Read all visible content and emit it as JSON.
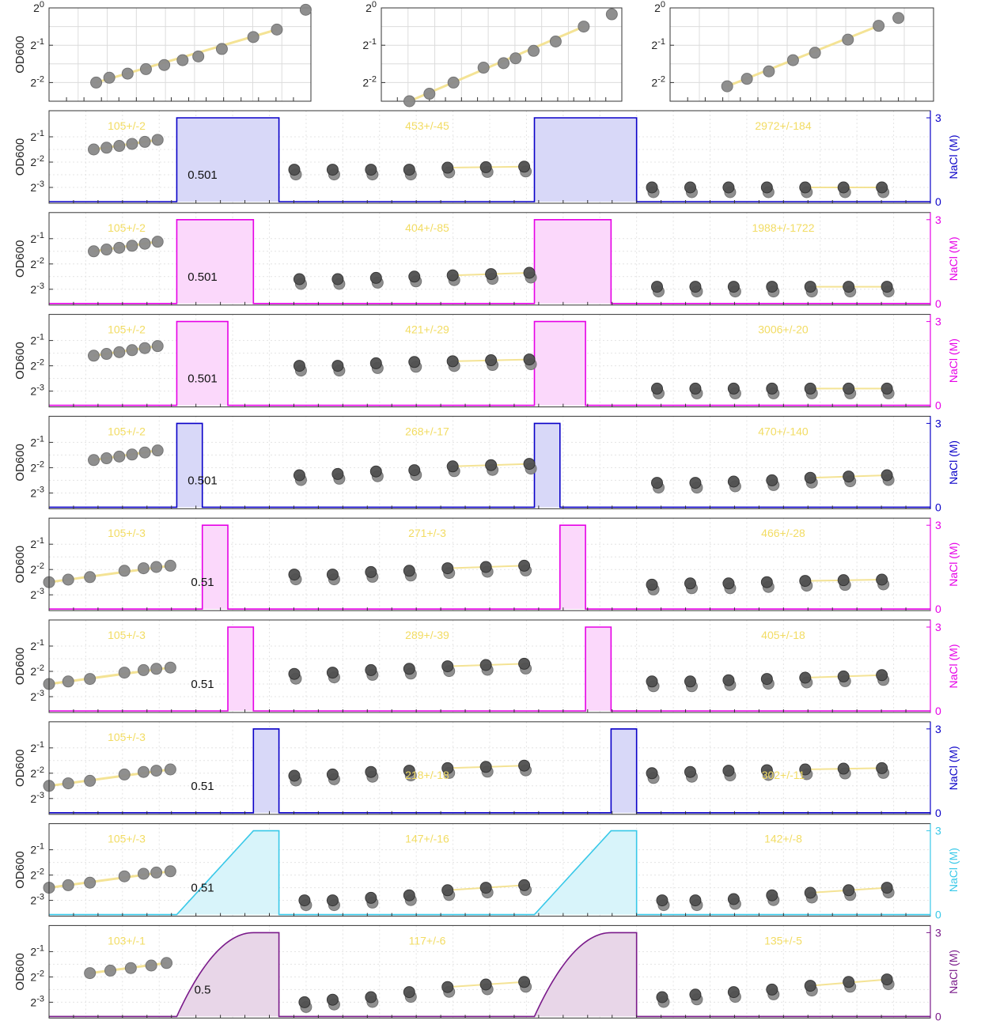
{
  "figure": {
    "top_ylabel": "OD600",
    "tick_labels": [
      {
        "base": "2",
        "exp": "0"
      },
      {
        "base": "2",
        "exp": "-1"
      },
      {
        "base": "2",
        "exp": "-2"
      },
      {
        "base": "2",
        "exp": "-3"
      }
    ],
    "nacl_label": "NaCl (M)",
    "nacl_ticks": [
      "0",
      "3"
    ]
  },
  "chart_data": [
    {
      "type": "scatter",
      "panel": "top-1",
      "ylabel": "OD600",
      "yscale": "log2",
      "ylim": [
        -2.5,
        0
      ],
      "grid": true,
      "x": [
        0.9,
        1.15,
        1.5,
        1.85,
        2.2,
        2.55,
        2.85,
        3.3,
        3.9,
        4.35,
        4.9
      ],
      "y": [
        -2.0,
        -1.87,
        -1.76,
        -1.64,
        -1.53,
        -1.4,
        -1.3,
        -1.1,
        -0.78,
        -0.58,
        -0.05
      ]
    },
    {
      "type": "scatter",
      "panel": "top-2",
      "yscale": "log2",
      "ylim": [
        -2.5,
        0
      ],
      "grid": true,
      "x": [
        0.7,
        1.2,
        1.8,
        2.55,
        3.05,
        3.35,
        3.8,
        4.35,
        5.05,
        5.75
      ],
      "y": [
        -2.5,
        -2.3,
        -2.0,
        -1.6,
        -1.48,
        -1.35,
        -1.15,
        -0.9,
        -0.5,
        -0.17
      ]
    },
    {
      "type": "scatter",
      "panel": "top-3",
      "yscale": "log2",
      "ylim": [
        -2.5,
        0
      ],
      "grid": true,
      "x": [
        1.3,
        1.75,
        2.25,
        2.8,
        3.3,
        4.05,
        4.75,
        5.2
      ],
      "y": [
        -2.1,
        -1.9,
        -1.7,
        -1.4,
        -1.2,
        -0.85,
        -0.48,
        -0.27
      ]
    },
    {
      "type": "line",
      "panel": "row-1",
      "color": "#0a00c8",
      "fill": "#d8d8f8",
      "shape": "rect",
      "pulse": [
        [
          5,
          9
        ],
        [
          19,
          23
        ]
      ],
      "doubling_label": "0.501",
      "annotations": [
        "105+/-2",
        "453+/-45",
        "2972+/-184"
      ],
      "points": [
        [
          1.75,
          -1.5
        ],
        [
          2.25,
          -1.43
        ],
        [
          2.75,
          -1.36
        ],
        [
          3.25,
          -1.28
        ],
        [
          3.75,
          -1.2
        ],
        [
          4.25,
          -1.12
        ],
        [
          9.6,
          -2.3
        ],
        [
          11.1,
          -2.3
        ],
        [
          12.6,
          -2.3
        ],
        [
          14.1,
          -2.3
        ],
        [
          15.6,
          -2.22
        ],
        [
          17.1,
          -2.2
        ],
        [
          18.6,
          -2.18
        ],
        [
          23.6,
          -3.0
        ],
        [
          25.1,
          -3.0
        ],
        [
          26.6,
          -3.0
        ],
        [
          28.1,
          -3.0
        ],
        [
          29.6,
          -3.0
        ],
        [
          31.1,
          -3.0
        ],
        [
          32.6,
          -3.0
        ]
      ]
    },
    {
      "type": "line",
      "panel": "row-2",
      "color": "#e600e6",
      "fill": "#fbd8fb",
      "shape": "rect",
      "pulse": [
        [
          5,
          8
        ],
        [
          19,
          22
        ]
      ],
      "doubling_label": "0.501",
      "annotations": [
        "105+/-2",
        "404+/-85",
        "1988+/-1722"
      ],
      "points": [
        [
          1.75,
          -1.5
        ],
        [
          2.25,
          -1.43
        ],
        [
          2.75,
          -1.36
        ],
        [
          3.25,
          -1.28
        ],
        [
          3.75,
          -1.2
        ],
        [
          4.25,
          -1.12
        ],
        [
          9.8,
          -2.6
        ],
        [
          11.3,
          -2.6
        ],
        [
          12.8,
          -2.55
        ],
        [
          14.3,
          -2.5
        ],
        [
          15.8,
          -2.45
        ],
        [
          17.3,
          -2.4
        ],
        [
          18.8,
          -2.35
        ],
        [
          23.8,
          -2.9
        ],
        [
          25.3,
          -2.9
        ],
        [
          26.8,
          -2.9
        ],
        [
          28.3,
          -2.9
        ],
        [
          29.8,
          -2.9
        ],
        [
          31.3,
          -2.9
        ],
        [
          32.8,
          -2.9
        ]
      ]
    },
    {
      "type": "line",
      "panel": "row-3",
      "color": "#e600e6",
      "fill": "#fbd8fb",
      "shape": "rect",
      "pulse": [
        [
          5,
          7
        ],
        [
          19,
          21
        ]
      ],
      "doubling_label": "0.501",
      "annotations": [
        "105+/-2",
        "421+/-29",
        "3006+/-20"
      ],
      "points": [
        [
          1.75,
          -1.6
        ],
        [
          2.25,
          -1.53
        ],
        [
          2.75,
          -1.46
        ],
        [
          3.25,
          -1.38
        ],
        [
          3.75,
          -1.3
        ],
        [
          4.25,
          -1.22
        ],
        [
          9.8,
          -2.0
        ],
        [
          11.3,
          -2.0
        ],
        [
          12.8,
          -1.9
        ],
        [
          14.3,
          -1.85
        ],
        [
          15.8,
          -1.82
        ],
        [
          17.3,
          -1.78
        ],
        [
          18.8,
          -1.75
        ],
        [
          23.8,
          -2.9
        ],
        [
          25.3,
          -2.9
        ],
        [
          26.8,
          -2.9
        ],
        [
          28.3,
          -2.9
        ],
        [
          29.8,
          -2.9
        ],
        [
          31.3,
          -2.9
        ],
        [
          32.8,
          -2.9
        ]
      ]
    },
    {
      "type": "line",
      "panel": "row-4",
      "color": "#0a00c8",
      "fill": "#d8d8f8",
      "shape": "rect",
      "pulse": [
        [
          5,
          6
        ],
        [
          19,
          20
        ]
      ],
      "doubling_label": "0.501",
      "annotations": [
        "105+/-2",
        "268+/-17",
        "470+/-140"
      ],
      "points": [
        [
          1.75,
          -1.7
        ],
        [
          2.25,
          -1.63
        ],
        [
          2.75,
          -1.56
        ],
        [
          3.25,
          -1.48
        ],
        [
          3.75,
          -1.4
        ],
        [
          4.25,
          -1.32
        ],
        [
          9.8,
          -2.3
        ],
        [
          11.3,
          -2.25
        ],
        [
          12.8,
          -2.15
        ],
        [
          14.3,
          -2.1
        ],
        [
          15.8,
          -1.95
        ],
        [
          17.3,
          -1.9
        ],
        [
          18.8,
          -1.85
        ],
        [
          23.8,
          -2.6
        ],
        [
          25.3,
          -2.6
        ],
        [
          26.8,
          -2.55
        ],
        [
          28.3,
          -2.5
        ],
        [
          29.8,
          -2.4
        ],
        [
          31.3,
          -2.35
        ],
        [
          32.8,
          -2.3
        ]
      ]
    },
    {
      "type": "line",
      "panel": "row-5",
      "color": "#e600e6",
      "fill": "#fbd8fb",
      "shape": "rect",
      "pulse": [
        [
          6,
          7
        ],
        [
          20,
          21
        ]
      ],
      "doubling_label": "0.51",
      "annotations": [
        "105+/-3",
        "271+/-3",
        "466+/-28"
      ],
      "points": [
        [
          0,
          -2.5
        ],
        [
          0.75,
          -2.4
        ],
        [
          1.6,
          -2.3
        ],
        [
          2.95,
          -2.05
        ],
        [
          3.7,
          -1.95
        ],
        [
          4.2,
          -1.9
        ],
        [
          4.75,
          -1.85
        ],
        [
          9.6,
          -2.2
        ],
        [
          11.1,
          -2.2
        ],
        [
          12.6,
          -2.1
        ],
        [
          14.1,
          -2.05
        ],
        [
          15.6,
          -1.95
        ],
        [
          17.1,
          -1.9
        ],
        [
          18.6,
          -1.85
        ],
        [
          23.6,
          -2.6
        ],
        [
          25.1,
          -2.55
        ],
        [
          26.6,
          -2.55
        ],
        [
          28.1,
          -2.5
        ],
        [
          29.6,
          -2.45
        ],
        [
          31.1,
          -2.42
        ],
        [
          32.6,
          -2.4
        ]
      ]
    },
    {
      "type": "line",
      "panel": "row-6",
      "color": "#e600e6",
      "fill": "#fbd8fb",
      "shape": "rect",
      "pulse": [
        [
          7,
          8
        ],
        [
          21,
          22
        ]
      ],
      "doubling_label": "0.51",
      "annotations": [
        "105+/-3",
        "289+/-39",
        "405+/-18"
      ],
      "points": [
        [
          0,
          -2.5
        ],
        [
          0.75,
          -2.4
        ],
        [
          1.6,
          -2.3
        ],
        [
          2.95,
          -2.05
        ],
        [
          3.7,
          -1.95
        ],
        [
          4.2,
          -1.9
        ],
        [
          4.75,
          -1.85
        ],
        [
          9.6,
          -2.1
        ],
        [
          11.1,
          -2.05
        ],
        [
          12.6,
          -1.95
        ],
        [
          14.1,
          -1.9
        ],
        [
          15.6,
          -1.8
        ],
        [
          17.1,
          -1.75
        ],
        [
          18.6,
          -1.7
        ],
        [
          23.6,
          -2.4
        ],
        [
          25.1,
          -2.4
        ],
        [
          26.6,
          -2.35
        ],
        [
          28.1,
          -2.3
        ],
        [
          29.6,
          -2.25
        ],
        [
          31.1,
          -2.2
        ],
        [
          32.6,
          -2.15
        ]
      ]
    },
    {
      "type": "line",
      "panel": "row-7",
      "color": "#0a00c8",
      "fill": "#d8d8f8",
      "shape": "rect",
      "pulse": [
        [
          8,
          9
        ],
        [
          22,
          23
        ]
      ],
      "doubling_label": "0.51",
      "annotations": [
        "105+/-3",
        "218+/-18",
        "302+/-11"
      ],
      "points": [
        [
          0,
          -2.5
        ],
        [
          0.75,
          -2.4
        ],
        [
          1.6,
          -2.3
        ],
        [
          2.95,
          -2.05
        ],
        [
          3.7,
          -1.95
        ],
        [
          4.2,
          -1.9
        ],
        [
          4.75,
          -1.85
        ],
        [
          9.6,
          -2.1
        ],
        [
          11.1,
          -2.05
        ],
        [
          12.6,
          -1.95
        ],
        [
          14.1,
          -1.9
        ],
        [
          15.6,
          -1.8
        ],
        [
          17.1,
          -1.75
        ],
        [
          18.6,
          -1.7
        ],
        [
          23.6,
          -2.0
        ],
        [
          25.1,
          -1.95
        ],
        [
          26.6,
          -1.9
        ],
        [
          28.1,
          -1.88
        ],
        [
          29.6,
          -1.85
        ],
        [
          31.1,
          -1.82
        ],
        [
          32.6,
          -1.8
        ]
      ]
    },
    {
      "type": "line",
      "panel": "row-8",
      "color": "#38c8e8",
      "fill": "#d8f4fa",
      "shape": "ramp-linear",
      "pulse": [
        [
          5,
          9
        ],
        [
          19,
          23
        ]
      ],
      "doubling_label": "0.51",
      "annotations": [
        "105+/-3",
        "147+/-16",
        "142+/-8"
      ],
      "points": [
        [
          0,
          -2.5
        ],
        [
          0.75,
          -2.4
        ],
        [
          1.6,
          -2.3
        ],
        [
          2.95,
          -2.05
        ],
        [
          3.7,
          -1.95
        ],
        [
          4.2,
          -1.9
        ],
        [
          4.75,
          -1.85
        ],
        [
          10.0,
          -3.0
        ],
        [
          11.1,
          -3.0
        ],
        [
          12.6,
          -2.9
        ],
        [
          14.1,
          -2.8
        ],
        [
          15.6,
          -2.6
        ],
        [
          17.1,
          -2.5
        ],
        [
          18.6,
          -2.4
        ],
        [
          24.0,
          -3.0
        ],
        [
          25.3,
          -3.0
        ],
        [
          26.8,
          -2.95
        ],
        [
          28.3,
          -2.8
        ],
        [
          29.8,
          -2.7
        ],
        [
          31.3,
          -2.6
        ],
        [
          32.8,
          -2.5
        ]
      ]
    },
    {
      "type": "line",
      "panel": "row-9",
      "color": "#7a1a8a",
      "fill": "#e8d6e8",
      "shape": "ramp-quadratic",
      "pulse": [
        [
          5,
          9
        ],
        [
          19,
          23
        ]
      ],
      "doubling_label": "0.5",
      "annotations": [
        "103+/-1",
        "117+/-6",
        "135+/-5"
      ],
      "points": [
        [
          1.6,
          -1.85
        ],
        [
          2.4,
          -1.75
        ],
        [
          3.2,
          -1.65
        ],
        [
          4.0,
          -1.55
        ],
        [
          4.6,
          -1.45
        ],
        [
          10.0,
          -3.0
        ],
        [
          11.1,
          -2.9
        ],
        [
          12.6,
          -2.8
        ],
        [
          14.1,
          -2.6
        ],
        [
          15.6,
          -2.4
        ],
        [
          17.1,
          -2.3
        ],
        [
          18.6,
          -2.2
        ],
        [
          24.0,
          -2.8
        ],
        [
          25.3,
          -2.7
        ],
        [
          26.8,
          -2.6
        ],
        [
          28.3,
          -2.5
        ],
        [
          29.8,
          -2.35
        ],
        [
          31.3,
          -2.2
        ],
        [
          32.8,
          -2.1
        ]
      ]
    }
  ]
}
